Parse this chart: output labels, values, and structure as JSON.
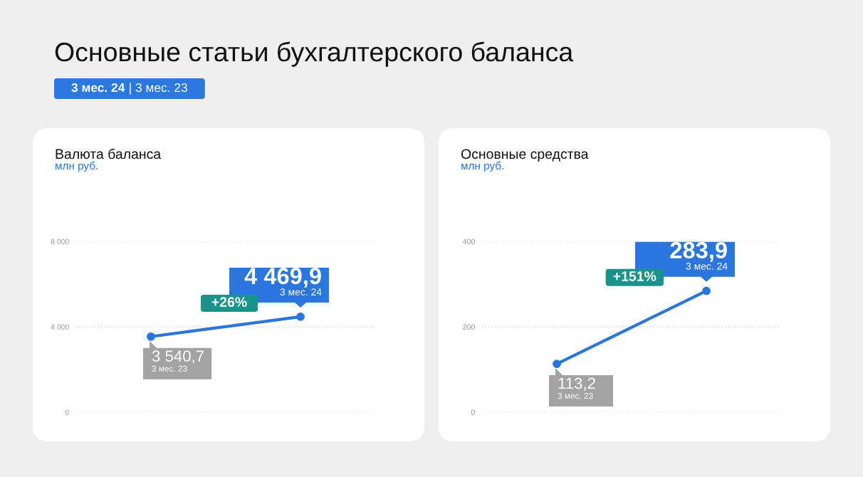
{
  "chart_data": [
    {
      "type": "other",
      "title": "Основные статьи бухгалтерского баланса",
      "annotations": [
        "3 мес. 24",
        "| 3 мес. 23"
      ]
    },
    {
      "type": "line",
      "title": "Валюта баланса",
      "subtitle": "млн руб.",
      "categories": [
        null,
        null
      ],
      "series": [
        {
          "color": "#2a76dd",
          "values": [
            3540.7,
            4469.9
          ],
          "value_labels": [
            "3 540,7",
            "4 469,9"
          ]
        }
      ],
      "ylim": [
        0,
        8000
      ],
      "yticks": [
        0,
        {
          "value": 4000,
          "label": "4 000"
        },
        {
          "value": 8000,
          "label": "8 000"
        }
      ],
      "grid": "y",
      "marker": "circle",
      "tick_labels": "y",
      "annotations": [
        "3 мес. 23",
        "3 мес. 24",
        "+26%"
      ]
    },
    {
      "type": "line",
      "title": "Основные средства",
      "subtitle": "млн руб.",
      "categories": [
        null,
        null
      ],
      "series": [
        {
          "color": "#2a76dd",
          "values": [
            113.2,
            283.9
          ],
          "value_labels": [
            "113,2",
            "283,9"
          ]
        }
      ],
      "ylim": [
        0,
        400
      ],
      "yticks": [
        0,
        200,
        400
      ],
      "grid": "y",
      "marker": "circle",
      "tick_labels": "y",
      "annotations": [
        "3 мес. 23",
        "3 мес. 24",
        "+151%"
      ]
    }
  ]
}
